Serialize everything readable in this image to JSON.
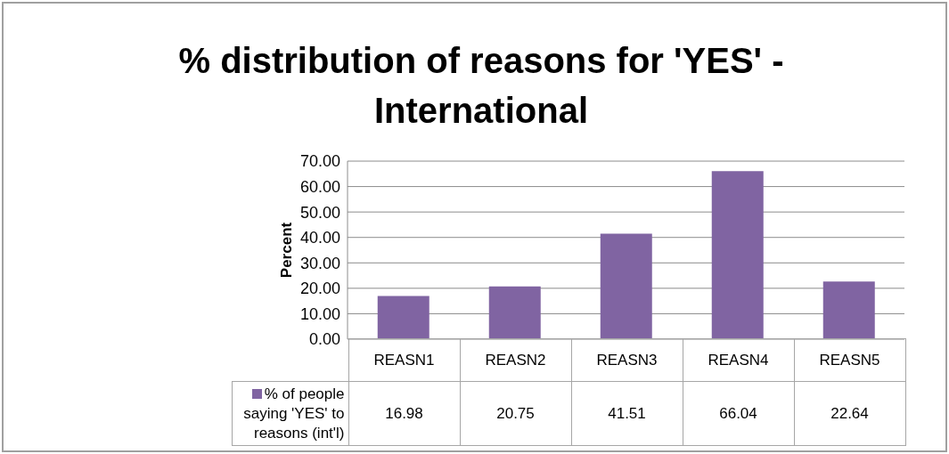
{
  "chart_data": {
    "type": "bar",
    "title": "%  distribution of reasons for 'YES' - International",
    "ylabel": "Percent",
    "categories": [
      "REASN1",
      "REASN2",
      "REASN3",
      "REASN4",
      "REASN5"
    ],
    "series": [
      {
        "name": "% of people saying 'YES' to reasons (int'l)",
        "color": "#8064a2",
        "values": [
          16.98,
          20.75,
          41.51,
          66.04,
          22.64
        ]
      }
    ],
    "ylim": [
      0,
      70
    ],
    "yticks": [
      {
        "value": 0,
        "label": "0.00"
      },
      {
        "value": 10,
        "label": "10.00"
      },
      {
        "value": 20,
        "label": "20.00"
      },
      {
        "value": 30,
        "label": "30.00"
      },
      {
        "value": 40,
        "label": "40.00"
      },
      {
        "value": 50,
        "label": "50.00"
      },
      {
        "value": 60,
        "label": "60.00"
      },
      {
        "value": 70,
        "label": "70.00"
      }
    ],
    "grid": "y",
    "legend": "bottom",
    "data_labels": true
  }
}
